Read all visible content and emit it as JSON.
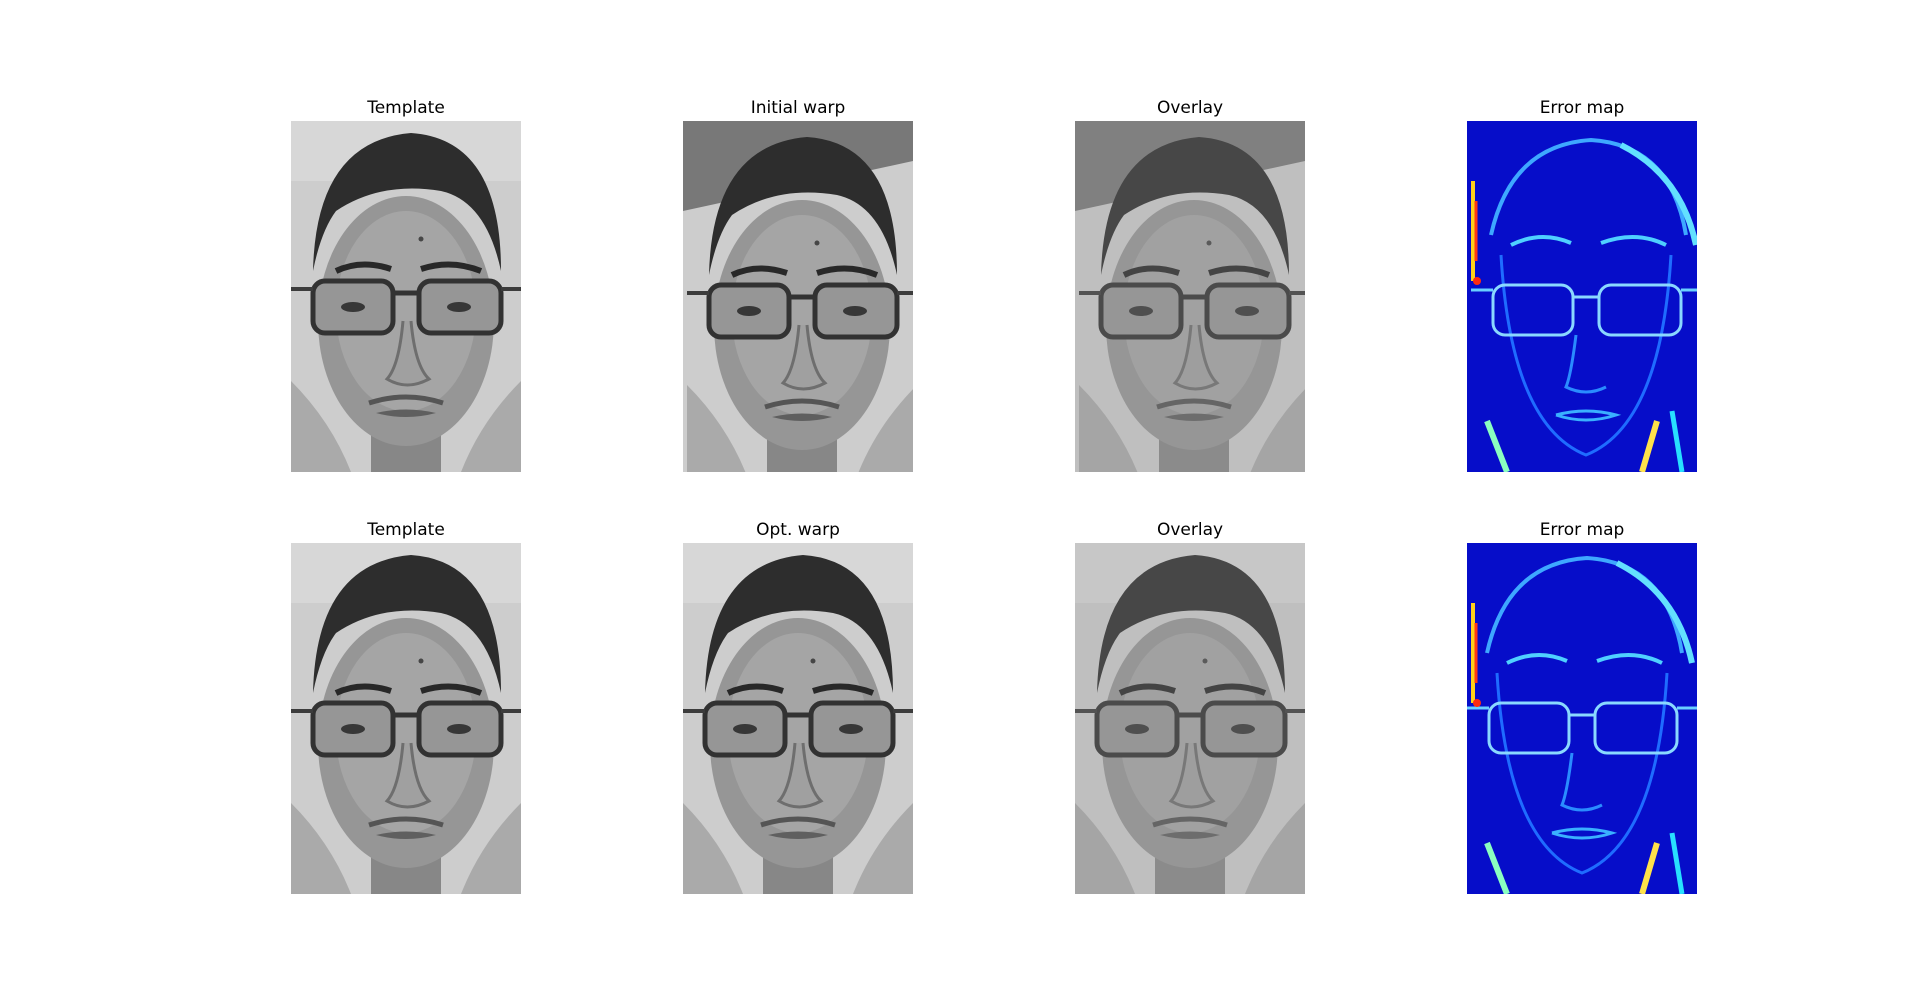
{
  "figure": {
    "rows": [
      {
        "panels": [
          {
            "title": "Template",
            "kind": "gray",
            "shift": 0,
            "contrast": 1.0
          },
          {
            "title": "Initial warp",
            "kind": "gray",
            "shift": 1,
            "contrast": 1.0
          },
          {
            "title": "Overlay",
            "kind": "gray",
            "shift": 1,
            "contrast": 0.75
          },
          {
            "title": "Error map",
            "kind": "error",
            "shift": 1,
            "contrast": 1.0
          }
        ]
      },
      {
        "panels": [
          {
            "title": "Template",
            "kind": "gray",
            "shift": 0,
            "contrast": 1.0
          },
          {
            "title": "Opt. warp",
            "kind": "gray",
            "shift": 0,
            "contrast": 1.0
          },
          {
            "title": "Overlay",
            "kind": "gray",
            "shift": 0,
            "contrast": 0.75
          },
          {
            "title": "Error map",
            "kind": "error",
            "shift": 0,
            "contrast": 1.0
          }
        ]
      }
    ]
  }
}
